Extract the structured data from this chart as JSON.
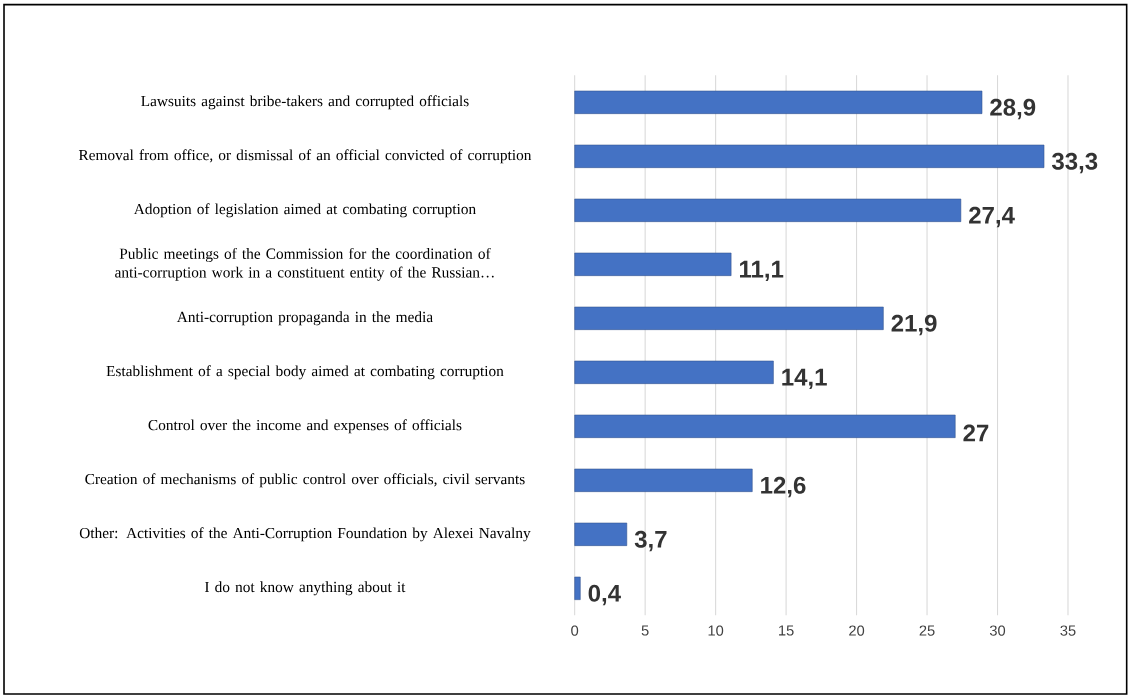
{
  "chart_data": {
    "type": "bar",
    "orientation": "horizontal",
    "categories": [
      "Lawsuits against bribe-takers and corrupted officials",
      "Removal from office, or dismissal of an official convicted of corruption",
      "Adoption of legislation aimed at combating corruption",
      "Public meetings of the Commission for the coordination of anti-corruption work in a constituent entity of the Russian…",
      "Anti-corruption propaganda in the media",
      "Establishment of a special body aimed at combating corruption",
      "Control over the income and expenses of officials",
      "Creation of mechanisms of public control over officials, civil servants",
      "Other: Activities of the Anti-Corruption Foundation by Alexei Navalny",
      "I do not know anything about it"
    ],
    "values": [
      28.9,
      33.3,
      27.4,
      11.1,
      21.9,
      14.1,
      27,
      12.6,
      3.7,
      0.4
    ],
    "value_labels": [
      "28,9",
      "33,3",
      "27,4",
      "11,1",
      "21,9",
      "14,1",
      "27",
      "12,6",
      "3,7",
      "0,4"
    ],
    "color": "#4472c4",
    "xlim": [
      0,
      35
    ],
    "xticks": [
      0,
      5,
      10,
      15,
      20,
      25,
      30,
      35
    ],
    "grid": "x"
  }
}
